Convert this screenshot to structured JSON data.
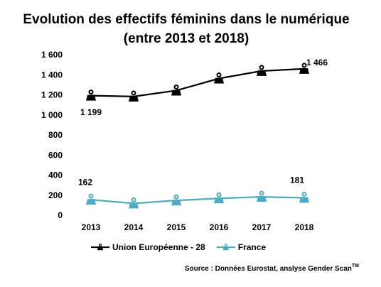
{
  "chart_data": {
    "type": "line",
    "title": "Evolution des effectifs féminins dans le numérique",
    "subtitle": "(entre 2013 et 2018)",
    "categories": [
      "2013",
      "2014",
      "2015",
      "2016",
      "2017",
      "2018"
    ],
    "series": [
      {
        "name": "Union Européenne - 28",
        "color": "#000000",
        "values": [
          1199,
          1190,
          1250,
          1370,
          1445,
          1466
        ],
        "value_labels": [
          "1 199",
          null,
          null,
          null,
          null,
          "1 466"
        ]
      },
      {
        "name": "France",
        "color": "#4bacc6",
        "values": [
          162,
          125,
          155,
          175,
          190,
          181
        ],
        "value_labels": [
          "162",
          null,
          null,
          null,
          null,
          "181"
        ]
      }
    ],
    "ylim": [
      0,
      1600
    ],
    "yticks": [
      0,
      200,
      400,
      600,
      800,
      {
        "value": 1000,
        "label": "1 000"
      },
      {
        "value": 1200,
        "label": "1 200"
      },
      {
        "value": 1400,
        "label": "1 400"
      },
      {
        "value": 1600,
        "label": "1 600"
      }
    ],
    "grid": false,
    "legend": "bottom",
    "source": "Source : Données Eurostat, analyse Gender Scan",
    "source_mark": "TM"
  }
}
